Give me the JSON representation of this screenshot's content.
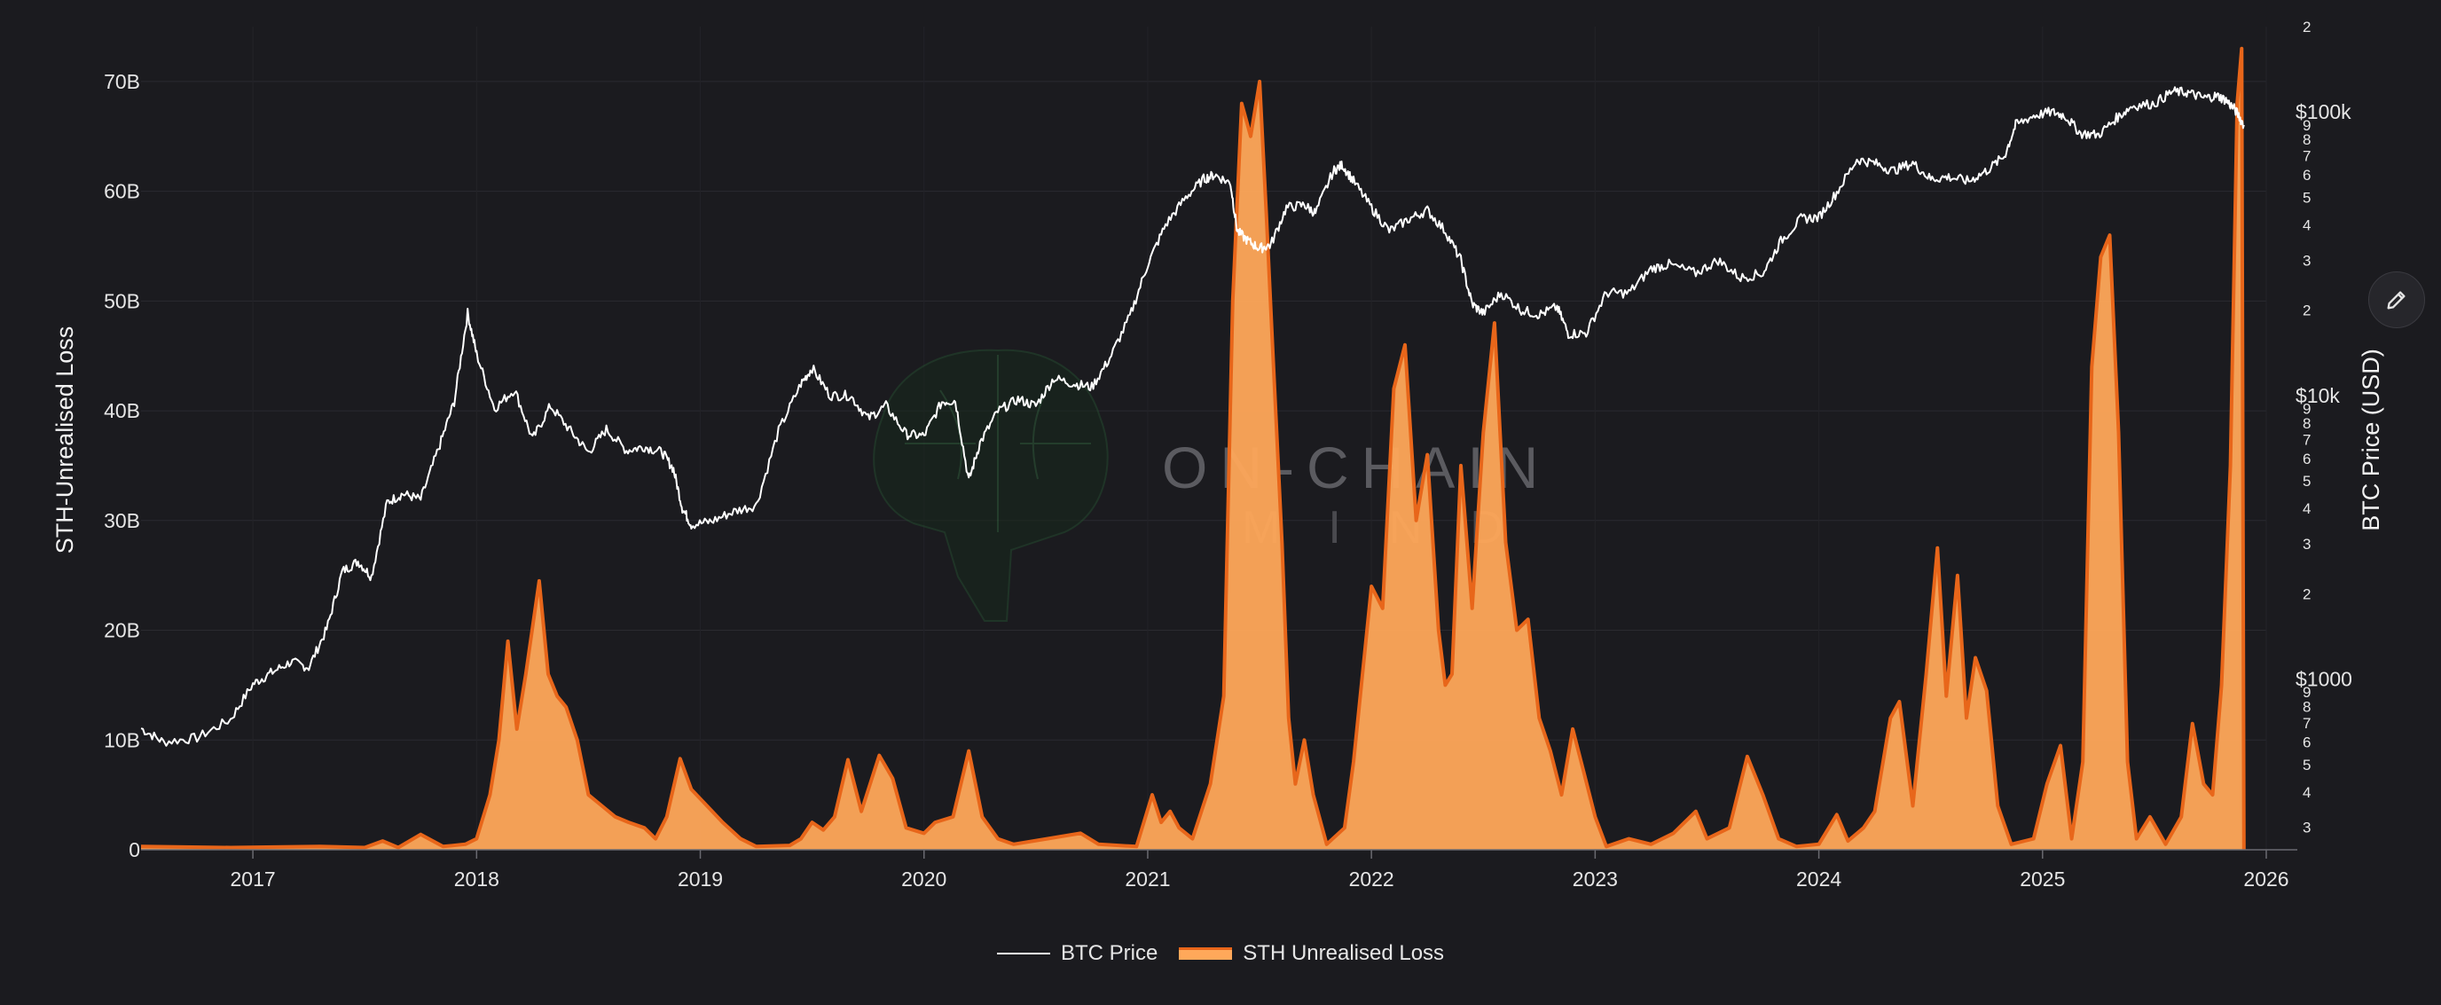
{
  "chart_data": {
    "type": "line+area",
    "y_left_label": "STH-Unrealised Loss",
    "y_right_label": "BTC Price (USD)",
    "y_left_ticks": [
      "0",
      "10B",
      "20B",
      "30B",
      "40B",
      "50B",
      "60B",
      "70B"
    ],
    "y_left_range": [
      0,
      75
    ],
    "y_right_scale": "log",
    "y_right_range": [
      250,
      200000
    ],
    "y_right_major_ticks": [
      "$1000",
      "$10k",
      "$100k"
    ],
    "y_right_minor_ticks": [
      "3",
      "4",
      "5",
      "6",
      "7",
      "8",
      "9",
      "2",
      "3",
      "4",
      "5",
      "6",
      "7",
      "8",
      "9",
      "2",
      "3",
      "4",
      "5",
      "6",
      "7",
      "8",
      "9",
      "2"
    ],
    "x_ticks": [
      "2017",
      "2018",
      "2019",
      "2020",
      "2021",
      "2022",
      "2023",
      "2024",
      "2025",
      "2026"
    ],
    "x_range": [
      2016.5,
      2026.0
    ],
    "series": [
      {
        "name": "BTC Price",
        "color": "#ffffff",
        "points": [
          [
            2016.5,
            670
          ],
          [
            2016.6,
            600
          ],
          [
            2016.75,
            620
          ],
          [
            2016.9,
            720
          ],
          [
            2017.0,
            960
          ],
          [
            2017.08,
            1050
          ],
          [
            2017.17,
            1150
          ],
          [
            2017.25,
            1100
          ],
          [
            2017.33,
            1500
          ],
          [
            2017.4,
            2400
          ],
          [
            2017.47,
            2600
          ],
          [
            2017.53,
            2300
          ],
          [
            2017.6,
            4200
          ],
          [
            2017.67,
            4500
          ],
          [
            2017.75,
            4300
          ],
          [
            2017.83,
            6500
          ],
          [
            2017.9,
            9500
          ],
          [
            2017.96,
            19500
          ],
          [
            2018.0,
            14000
          ],
          [
            2018.08,
            9000
          ],
          [
            2018.17,
            10500
          ],
          [
            2018.25,
            7000
          ],
          [
            2018.33,
            9200
          ],
          [
            2018.42,
            7500
          ],
          [
            2018.5,
            6300
          ],
          [
            2018.58,
            7600
          ],
          [
            2018.67,
            6400
          ],
          [
            2018.75,
            6600
          ],
          [
            2018.83,
            6300
          ],
          [
            2018.88,
            5500
          ],
          [
            2018.92,
            4000
          ],
          [
            2018.96,
            3500
          ],
          [
            2019.05,
            3600
          ],
          [
            2019.15,
            3900
          ],
          [
            2019.25,
            4100
          ],
          [
            2019.35,
            7500
          ],
          [
            2019.45,
            11000
          ],
          [
            2019.5,
            12500
          ],
          [
            2019.58,
            10000
          ],
          [
            2019.67,
            10000
          ],
          [
            2019.75,
            8300
          ],
          [
            2019.83,
            9200
          ],
          [
            2019.92,
            7300
          ],
          [
            2020.0,
            7200
          ],
          [
            2020.08,
            9500
          ],
          [
            2020.14,
            9600
          ],
          [
            2020.2,
            5000
          ],
          [
            2020.25,
            6800
          ],
          [
            2020.33,
            8800
          ],
          [
            2020.42,
            9700
          ],
          [
            2020.5,
            9200
          ],
          [
            2020.58,
            11500
          ],
          [
            2020.67,
            11000
          ],
          [
            2020.75,
            10700
          ],
          [
            2020.83,
            13500
          ],
          [
            2020.92,
            19000
          ],
          [
            2021.0,
            29000
          ],
          [
            2021.08,
            40000
          ],
          [
            2021.17,
            50000
          ],
          [
            2021.25,
            58000
          ],
          [
            2021.3,
            60000
          ],
          [
            2021.37,
            56000
          ],
          [
            2021.4,
            38000
          ],
          [
            2021.45,
            35000
          ],
          [
            2021.5,
            33000
          ],
          [
            2021.55,
            34000
          ],
          [
            2021.62,
            46000
          ],
          [
            2021.7,
            47000
          ],
          [
            2021.75,
            44000
          ],
          [
            2021.83,
            62000
          ],
          [
            2021.87,
            65000
          ],
          [
            2021.92,
            57000
          ],
          [
            2022.0,
            46000
          ],
          [
            2022.08,
            38000
          ],
          [
            2022.17,
            42000
          ],
          [
            2022.25,
            45000
          ],
          [
            2022.33,
            38000
          ],
          [
            2022.4,
            30000
          ],
          [
            2022.45,
            21000
          ],
          [
            2022.5,
            19500
          ],
          [
            2022.58,
            23000
          ],
          [
            2022.67,
            20000
          ],
          [
            2022.75,
            19300
          ],
          [
            2022.83,
            20500
          ],
          [
            2022.88,
            16500
          ],
          [
            2022.96,
            16600
          ],
          [
            2023.05,
            23000
          ],
          [
            2023.15,
            23000
          ],
          [
            2023.25,
            28000
          ],
          [
            2023.33,
            29000
          ],
          [
            2023.45,
            27000
          ],
          [
            2023.55,
            30000
          ],
          [
            2023.65,
            26000
          ],
          [
            2023.75,
            27000
          ],
          [
            2023.83,
            35000
          ],
          [
            2023.92,
            42000
          ],
          [
            2024.0,
            42500
          ],
          [
            2024.08,
            52000
          ],
          [
            2024.17,
            68000
          ],
          [
            2024.25,
            66000
          ],
          [
            2024.33,
            62000
          ],
          [
            2024.42,
            66000
          ],
          [
            2024.5,
            58000
          ],
          [
            2024.58,
            59000
          ],
          [
            2024.67,
            57000
          ],
          [
            2024.75,
            62000
          ],
          [
            2024.83,
            70000
          ],
          [
            2024.88,
            90000
          ],
          [
            2024.96,
            97000
          ],
          [
            2025.04,
            100000
          ],
          [
            2025.1,
            97000
          ],
          [
            2025.17,
            84000
          ],
          [
            2025.25,
            83000
          ],
          [
            2025.33,
            95000
          ],
          [
            2025.4,
            105000
          ],
          [
            2025.5,
            107000
          ],
          [
            2025.58,
            118000
          ],
          [
            2025.65,
            117000
          ],
          [
            2025.72,
            112000
          ],
          [
            2025.78,
            114000
          ],
          [
            2025.82,
            110000
          ],
          [
            2025.86,
            102000
          ],
          [
            2025.9,
            90000
          ]
        ]
      },
      {
        "name": "STH Unrealised Loss",
        "color": "#ffa85a",
        "stroke": "#e8661a",
        "points": [
          [
            2016.5,
            0.3
          ],
          [
            2016.9,
            0.2
          ],
          [
            2017.3,
            0.3
          ],
          [
            2017.5,
            0.2
          ],
          [
            2017.58,
            0.8
          ],
          [
            2017.65,
            0.2
          ],
          [
            2017.75,
            1.4
          ],
          [
            2017.85,
            0.3
          ],
          [
            2017.95,
            0.5
          ],
          [
            2018.0,
            1.0
          ],
          [
            2018.06,
            5.0
          ],
          [
            2018.1,
            10.0
          ],
          [
            2018.14,
            19.0
          ],
          [
            2018.18,
            11.0
          ],
          [
            2018.22,
            16.0
          ],
          [
            2018.28,
            24.5
          ],
          [
            2018.32,
            16.0
          ],
          [
            2018.36,
            14.0
          ],
          [
            2018.4,
            13.0
          ],
          [
            2018.45,
            10.0
          ],
          [
            2018.5,
            5.0
          ],
          [
            2018.56,
            4.0
          ],
          [
            2018.62,
            3.0
          ],
          [
            2018.68,
            2.5
          ],
          [
            2018.75,
            2.0
          ],
          [
            2018.8,
            1.0
          ],
          [
            2018.85,
            3.0
          ],
          [
            2018.91,
            8.3
          ],
          [
            2018.96,
            5.5
          ],
          [
            2019.03,
            4.0
          ],
          [
            2019.1,
            2.5
          ],
          [
            2019.18,
            1.0
          ],
          [
            2019.25,
            0.3
          ],
          [
            2019.4,
            0.4
          ],
          [
            2019.45,
            1.0
          ],
          [
            2019.5,
            2.5
          ],
          [
            2019.55,
            1.8
          ],
          [
            2019.6,
            3.0
          ],
          [
            2019.66,
            8.2
          ],
          [
            2019.72,
            3.5
          ],
          [
            2019.8,
            8.6
          ],
          [
            2019.86,
            6.5
          ],
          [
            2019.92,
            2.0
          ],
          [
            2020.0,
            1.5
          ],
          [
            2020.05,
            2.5
          ],
          [
            2020.13,
            3.0
          ],
          [
            2020.2,
            9.0
          ],
          [
            2020.26,
            3.0
          ],
          [
            2020.33,
            1.0
          ],
          [
            2020.4,
            0.5
          ],
          [
            2020.55,
            1.0
          ],
          [
            2020.7,
            1.5
          ],
          [
            2020.78,
            0.5
          ],
          [
            2020.95,
            0.3
          ],
          [
            2021.02,
            5.0
          ],
          [
            2021.06,
            2.5
          ],
          [
            2021.1,
            3.5
          ],
          [
            2021.14,
            2.0
          ],
          [
            2021.2,
            1.0
          ],
          [
            2021.28,
            6.0
          ],
          [
            2021.34,
            14.0
          ],
          [
            2021.38,
            50.0
          ],
          [
            2021.42,
            68.0
          ],
          [
            2021.46,
            65.0
          ],
          [
            2021.5,
            70.0
          ],
          [
            2021.53,
            58.0
          ],
          [
            2021.56,
            45.0
          ],
          [
            2021.6,
            28.0
          ],
          [
            2021.63,
            12.0
          ],
          [
            2021.66,
            6.0
          ],
          [
            2021.7,
            10.0
          ],
          [
            2021.74,
            5.0
          ],
          [
            2021.8,
            0.5
          ],
          [
            2021.88,
            2.0
          ],
          [
            2021.92,
            8.0
          ],
          [
            2022.0,
            24.0
          ],
          [
            2022.05,
            22.0
          ],
          [
            2022.1,
            42.0
          ],
          [
            2022.15,
            46.0
          ],
          [
            2022.2,
            30.0
          ],
          [
            2022.25,
            36.0
          ],
          [
            2022.3,
            20.0
          ],
          [
            2022.33,
            15.0
          ],
          [
            2022.36,
            16.0
          ],
          [
            2022.4,
            35.0
          ],
          [
            2022.45,
            22.0
          ],
          [
            2022.5,
            38.0
          ],
          [
            2022.55,
            48.0
          ],
          [
            2022.6,
            28.0
          ],
          [
            2022.65,
            20.0
          ],
          [
            2022.7,
            21.0
          ],
          [
            2022.75,
            12.0
          ],
          [
            2022.8,
            9.0
          ],
          [
            2022.85,
            5.0
          ],
          [
            2022.9,
            11.0
          ],
          [
            2022.95,
            7.0
          ],
          [
            2023.0,
            3.0
          ],
          [
            2023.05,
            0.3
          ],
          [
            2023.15,
            1.0
          ],
          [
            2023.25,
            0.5
          ],
          [
            2023.35,
            1.5
          ],
          [
            2023.45,
            3.5
          ],
          [
            2023.5,
            1.0
          ],
          [
            2023.6,
            2.0
          ],
          [
            2023.68,
            8.5
          ],
          [
            2023.75,
            5.0
          ],
          [
            2023.82,
            1.0
          ],
          [
            2023.9,
            0.3
          ],
          [
            2024.0,
            0.5
          ],
          [
            2024.08,
            3.2
          ],
          [
            2024.13,
            0.8
          ],
          [
            2024.2,
            2.0
          ],
          [
            2024.25,
            3.5
          ],
          [
            2024.32,
            12.0
          ],
          [
            2024.36,
            13.5
          ],
          [
            2024.42,
            4.0
          ],
          [
            2024.48,
            16.0
          ],
          [
            2024.53,
            27.5
          ],
          [
            2024.57,
            14.0
          ],
          [
            2024.62,
            25.0
          ],
          [
            2024.66,
            12.0
          ],
          [
            2024.7,
            17.5
          ],
          [
            2024.75,
            14.5
          ],
          [
            2024.8,
            4.0
          ],
          [
            2024.86,
            0.5
          ],
          [
            2024.96,
            1.0
          ],
          [
            2025.02,
            6.0
          ],
          [
            2025.08,
            9.5
          ],
          [
            2025.13,
            1.0
          ],
          [
            2025.18,
            8.0
          ],
          [
            2025.22,
            44.0
          ],
          [
            2025.26,
            54.0
          ],
          [
            2025.3,
            56.0
          ],
          [
            2025.34,
            38.0
          ],
          [
            2025.38,
            8.0
          ],
          [
            2025.42,
            1.0
          ],
          [
            2025.48,
            3.0
          ],
          [
            2025.55,
            0.5
          ],
          [
            2025.62,
            3.0
          ],
          [
            2025.67,
            11.5
          ],
          [
            2025.72,
            6.0
          ],
          [
            2025.76,
            5.0
          ],
          [
            2025.8,
            15.0
          ],
          [
            2025.84,
            35.0
          ],
          [
            2025.87,
            68.0
          ],
          [
            2025.89,
            73.0
          ],
          [
            2025.9,
            0
          ]
        ]
      }
    ],
    "legend_position": "bottom-center",
    "grid": true
  },
  "watermark": {
    "primary": "ON-CHAIN",
    "secondary": "MIND"
  },
  "legend": {
    "btc_price": "BTC Price",
    "sth_loss": "STH Unrealised Loss"
  },
  "icons": {
    "edit": "pencil-icon"
  }
}
